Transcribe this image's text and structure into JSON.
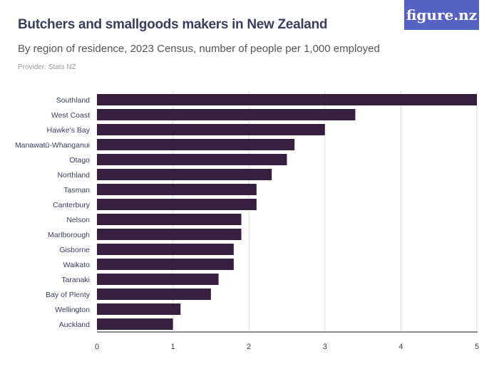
{
  "header": {
    "title": "Butchers and smallgoods makers in New Zealand",
    "subtitle": "By region of residence, 2023 Census, number of people per 1,000 employed",
    "provider": "Provider: Stats NZ",
    "logo": "figure.nz"
  },
  "colors": {
    "bar": "#35203f",
    "grid": "#dddddd",
    "logo_bg": "#5561c4"
  },
  "chart_data": {
    "type": "bar",
    "orientation": "horizontal",
    "categories": [
      "Southland",
      "West Coast",
      "Hawke's Bay",
      "Manawatū-Whanganui",
      "Otago",
      "Northland",
      "Tasman",
      "Canterbury",
      "Nelson",
      "Marlborough",
      "Gisborne",
      "Waikato",
      "Taranaki",
      "Bay of Plenty",
      "Wellington",
      "Auckland"
    ],
    "values": [
      5.0,
      3.4,
      3.0,
      2.6,
      2.5,
      2.3,
      2.1,
      2.1,
      1.9,
      1.9,
      1.8,
      1.8,
      1.6,
      1.5,
      1.1,
      1.0
    ],
    "xlim": [
      0,
      5
    ],
    "xticks": [
      "0",
      "1",
      "2",
      "3",
      "4",
      "5"
    ],
    "grid": true
  }
}
